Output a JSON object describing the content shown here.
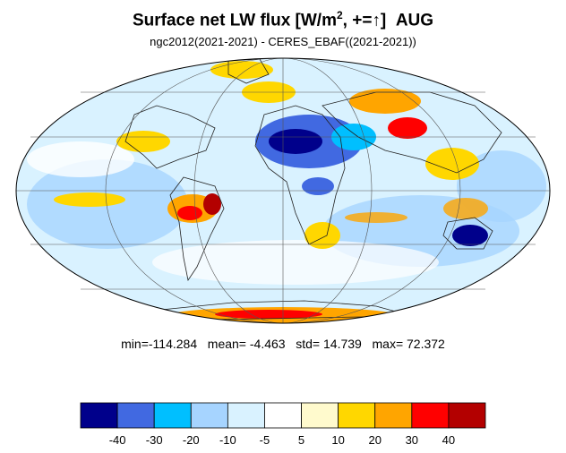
{
  "title": {
    "main": "Surface net LW flux [W/m",
    "sup": "2",
    "rest": ", +=",
    "arrow": "↑",
    "close": "]",
    "month": "AUG"
  },
  "subtitle": "ngc2012(2021-2021) - CERES_EBAF((2021-2021))",
  "stats": {
    "min_label": "min=",
    "min": "-114.284",
    "mean_label": "mean=",
    "mean": "-4.463",
    "std_label": "std=",
    "std": "14.739",
    "max_label": "max=",
    "max": "72.372"
  },
  "colorbar": {
    "colors": [
      "#00008b",
      "#4169e1",
      "#00bfff",
      "#a6d4ff",
      "#d9f2ff",
      "#ffffff",
      "#fffacd",
      "#ffd700",
      "#ffa500",
      "#ff0000",
      "#b30000"
    ],
    "tick_labels": [
      "-40",
      "-30",
      "-20",
      "-10",
      "-5",
      "5",
      "10",
      "20",
      "30",
      "40"
    ]
  },
  "map": {
    "projection": "mollweide",
    "grid": true,
    "background_color": "#d9f2ff"
  }
}
